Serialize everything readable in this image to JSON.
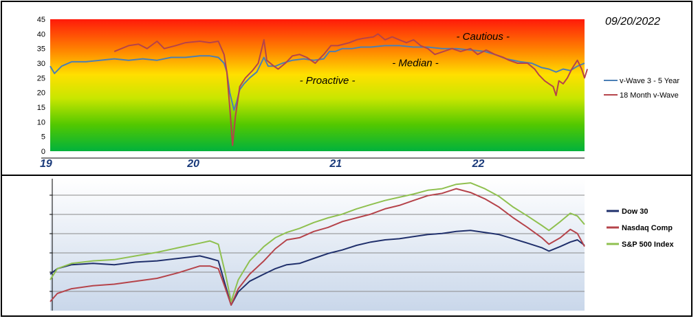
{
  "date_label": "09/20/2022",
  "chart_data": [
    {
      "type": "line",
      "title": "",
      "ylim": [
        0,
        45
      ],
      "yticks": [
        0,
        5,
        10,
        15,
        20,
        25,
        30,
        35,
        40,
        45
      ],
      "xlim": [
        2019.0,
        2022.75
      ],
      "xticks": [
        {
          "value": 2019.0,
          "label": "19"
        },
        {
          "value": 2020.0,
          "label": "20"
        },
        {
          "value": 2021.0,
          "label": "21"
        },
        {
          "value": 2022.0,
          "label": "22"
        }
      ],
      "background": "vertical gradient red (top) → orange → yellow → green (bottom)",
      "zone_labels": [
        {
          "text": "- Cautious -",
          "x": 2021.85,
          "y": 38
        },
        {
          "text": "- Median -",
          "x": 2021.4,
          "y": 29
        },
        {
          "text": "- Proactive -",
          "x": 2020.75,
          "y": 23
        }
      ],
      "legend_position": "right",
      "series": [
        {
          "name": "v-Wave 3 - 5 Year",
          "color": "#4a7fb5",
          "points": [
            [
              2019.0,
              29
            ],
            [
              2019.03,
              26.5
            ],
            [
              2019.08,
              29
            ],
            [
              2019.15,
              30.5
            ],
            [
              2019.25,
              30.5
            ],
            [
              2019.35,
              31
            ],
            [
              2019.45,
              31.5
            ],
            [
              2019.55,
              31
            ],
            [
              2019.65,
              31.5
            ],
            [
              2019.75,
              31
            ],
            [
              2019.85,
              32
            ],
            [
              2019.95,
              32
            ],
            [
              2020.05,
              32.5
            ],
            [
              2020.12,
              32.5
            ],
            [
              2020.18,
              32
            ],
            [
              2020.22,
              30
            ],
            [
              2020.24,
              27
            ],
            [
              2020.26,
              20
            ],
            [
              2020.29,
              14
            ],
            [
              2020.31,
              17
            ],
            [
              2020.33,
              21
            ],
            [
              2020.36,
              23
            ],
            [
              2020.4,
              25
            ],
            [
              2020.45,
              27
            ],
            [
              2020.5,
              32
            ],
            [
              2020.53,
              29
            ],
            [
              2020.58,
              29
            ],
            [
              2020.63,
              30
            ],
            [
              2020.7,
              31
            ],
            [
              2020.78,
              31.5
            ],
            [
              2020.85,
              31
            ],
            [
              2020.92,
              31.5
            ],
            [
              2020.96,
              34
            ],
            [
              2021.0,
              34
            ],
            [
              2021.05,
              35
            ],
            [
              2021.12,
              35
            ],
            [
              2021.18,
              35.5
            ],
            [
              2021.25,
              35.5
            ],
            [
              2021.35,
              36
            ],
            [
              2021.45,
              36
            ],
            [
              2021.55,
              35.5
            ],
            [
              2021.65,
              35.5
            ],
            [
              2021.75,
              35
            ],
            [
              2021.85,
              35
            ],
            [
              2021.95,
              34.5
            ],
            [
              2022.05,
              34
            ],
            [
              2022.12,
              33
            ],
            [
              2022.2,
              31.5
            ],
            [
              2022.3,
              30.5
            ],
            [
              2022.38,
              30
            ],
            [
              2022.45,
              28.5
            ],
            [
              2022.5,
              28
            ],
            [
              2022.55,
              27
            ],
            [
              2022.6,
              28
            ],
            [
              2022.65,
              27.5
            ],
            [
              2022.7,
              29
            ],
            [
              2022.75,
              30
            ]
          ]
        },
        {
          "name": "18 Month v-Wave",
          "color": "#b5434a",
          "points": [
            [
              2019.45,
              34
            ],
            [
              2019.5,
              35
            ],
            [
              2019.55,
              36
            ],
            [
              2019.62,
              36.5
            ],
            [
              2019.68,
              35
            ],
            [
              2019.75,
              37.5
            ],
            [
              2019.8,
              35
            ],
            [
              2019.88,
              36
            ],
            [
              2019.95,
              37
            ],
            [
              2020.05,
              37.5
            ],
            [
              2020.12,
              37
            ],
            [
              2020.18,
              37.5
            ],
            [
              2020.22,
              33
            ],
            [
              2020.24,
              27
            ],
            [
              2020.26,
              15
            ],
            [
              2020.28,
              2
            ],
            [
              2020.3,
              12
            ],
            [
              2020.33,
              22
            ],
            [
              2020.37,
              25
            ],
            [
              2020.42,
              27.5
            ],
            [
              2020.46,
              30
            ],
            [
              2020.5,
              38
            ],
            [
              2020.52,
              31
            ],
            [
              2020.57,
              29
            ],
            [
              2020.6,
              28
            ],
            [
              2020.65,
              30
            ],
            [
              2020.7,
              32.5
            ],
            [
              2020.75,
              33
            ],
            [
              2020.8,
              32
            ],
            [
              2020.86,
              30
            ],
            [
              2020.92,
              33
            ],
            [
              2020.97,
              36
            ],
            [
              2021.02,
              36
            ],
            [
              2021.1,
              37
            ],
            [
              2021.15,
              38
            ],
            [
              2021.2,
              38.5
            ],
            [
              2021.27,
              39
            ],
            [
              2021.3,
              40
            ],
            [
              2021.35,
              38
            ],
            [
              2021.4,
              39
            ],
            [
              2021.45,
              38
            ],
            [
              2021.5,
              37
            ],
            [
              2021.55,
              38
            ],
            [
              2021.6,
              36
            ],
            [
              2021.65,
              35
            ],
            [
              2021.7,
              33
            ],
            [
              2021.76,
              34
            ],
            [
              2021.82,
              35
            ],
            [
              2021.88,
              34
            ],
            [
              2021.95,
              35
            ],
            [
              2022.0,
              33
            ],
            [
              2022.06,
              34.5
            ],
            [
              2022.12,
              33
            ],
            [
              2022.18,
              32
            ],
            [
              2022.22,
              31
            ],
            [
              2022.28,
              30
            ],
            [
              2022.35,
              30
            ],
            [
              2022.4,
              28
            ],
            [
              2022.43,
              26
            ],
            [
              2022.47,
              24
            ],
            [
              2022.5,
              23
            ],
            [
              2022.53,
              22
            ],
            [
              2022.55,
              19
            ],
            [
              2022.57,
              24
            ],
            [
              2022.6,
              23
            ],
            [
              2022.63,
              25
            ],
            [
              2022.66,
              28
            ],
            [
              2022.7,
              31
            ],
            [
              2022.73,
              28
            ],
            [
              2022.75,
              25
            ],
            [
              2022.77,
              28
            ]
          ]
        }
      ]
    },
    {
      "type": "line",
      "title": "",
      "y_scale": "log",
      "xlim": [
        2019.0,
        2022.75
      ],
      "legend_position": "right",
      "series": [
        {
          "name": "Dow 30",
          "color": "#1f2f6b",
          "points": [
            [
              2019.0,
              100
            ],
            [
              2019.05,
              104
            ],
            [
              2019.15,
              107
            ],
            [
              2019.3,
              108
            ],
            [
              2019.45,
              107
            ],
            [
              2019.6,
              109
            ],
            [
              2019.75,
              110
            ],
            [
              2019.9,
              112
            ],
            [
              2020.05,
              114
            ],
            [
              2020.12,
              112
            ],
            [
              2020.18,
              110
            ],
            [
              2020.23,
              92
            ],
            [
              2020.27,
              80
            ],
            [
              2020.32,
              88
            ],
            [
              2020.4,
              95
            ],
            [
              2020.5,
              100
            ],
            [
              2020.58,
              104
            ],
            [
              2020.66,
              107
            ],
            [
              2020.75,
              108
            ],
            [
              2020.85,
              112
            ],
            [
              2020.95,
              116
            ],
            [
              2021.05,
              119
            ],
            [
              2021.15,
              123
            ],
            [
              2021.25,
              126
            ],
            [
              2021.35,
              128
            ],
            [
              2021.45,
              129
            ],
            [
              2021.55,
              131
            ],
            [
              2021.65,
              133
            ],
            [
              2021.75,
              134
            ],
            [
              2021.85,
              136
            ],
            [
              2021.95,
              137
            ],
            [
              2022.05,
              135
            ],
            [
              2022.15,
              133
            ],
            [
              2022.25,
              129
            ],
            [
              2022.35,
              125
            ],
            [
              2022.45,
              121
            ],
            [
              2022.5,
              118
            ],
            [
              2022.58,
              122
            ],
            [
              2022.65,
              126
            ],
            [
              2022.7,
              128
            ],
            [
              2022.75,
              123
            ]
          ]
        },
        {
          "name": "Nasdaq Comp",
          "color": "#b5434a",
          "points": [
            [
              2019.0,
              82
            ],
            [
              2019.05,
              87
            ],
            [
              2019.15,
              90
            ],
            [
              2019.3,
              92
            ],
            [
              2019.45,
              93
            ],
            [
              2019.6,
              95
            ],
            [
              2019.75,
              97
            ],
            [
              2019.9,
              101
            ],
            [
              2020.05,
              106
            ],
            [
              2020.12,
              106
            ],
            [
              2020.18,
              104
            ],
            [
              2020.23,
              90
            ],
            [
              2020.27,
              80
            ],
            [
              2020.32,
              90
            ],
            [
              2020.4,
              100
            ],
            [
              2020.5,
              110
            ],
            [
              2020.58,
              120
            ],
            [
              2020.66,
              128
            ],
            [
              2020.75,
              130
            ],
            [
              2020.85,
              136
            ],
            [
              2020.95,
              140
            ],
            [
              2021.05,
              146
            ],
            [
              2021.15,
              150
            ],
            [
              2021.25,
              154
            ],
            [
              2021.35,
              160
            ],
            [
              2021.45,
              164
            ],
            [
              2021.55,
              170
            ],
            [
              2021.65,
              176
            ],
            [
              2021.75,
              179
            ],
            [
              2021.85,
              185
            ],
            [
              2021.95,
              180
            ],
            [
              2022.05,
              172
            ],
            [
              2022.15,
              162
            ],
            [
              2022.25,
              150
            ],
            [
              2022.35,
              140
            ],
            [
              2022.45,
              130
            ],
            [
              2022.5,
              124
            ],
            [
              2022.58,
              130
            ],
            [
              2022.65,
              138
            ],
            [
              2022.7,
              134
            ],
            [
              2022.75,
              122
            ]
          ]
        },
        {
          "name": "S&P 500 Index",
          "color": "#8fc04f",
          "points": [
            [
              2019.0,
              96
            ],
            [
              2019.05,
              104
            ],
            [
              2019.15,
              108
            ],
            [
              2019.3,
              110
            ],
            [
              2019.45,
              111
            ],
            [
              2019.6,
              114
            ],
            [
              2019.75,
              117
            ],
            [
              2019.9,
              121
            ],
            [
              2020.05,
              125
            ],
            [
              2020.12,
              127
            ],
            [
              2020.18,
              124
            ],
            [
              2020.23,
              100
            ],
            [
              2020.27,
              82
            ],
            [
              2020.32,
              96
            ],
            [
              2020.4,
              110
            ],
            [
              2020.5,
              122
            ],
            [
              2020.58,
              130
            ],
            [
              2020.66,
              135
            ],
            [
              2020.75,
              139
            ],
            [
              2020.85,
              145
            ],
            [
              2020.95,
              150
            ],
            [
              2021.05,
              154
            ],
            [
              2021.15,
              160
            ],
            [
              2021.25,
              165
            ],
            [
              2021.35,
              170
            ],
            [
              2021.45,
              174
            ],
            [
              2021.55,
              178
            ],
            [
              2021.65,
              183
            ],
            [
              2021.75,
              185
            ],
            [
              2021.85,
              191
            ],
            [
              2021.95,
              193
            ],
            [
              2022.05,
              185
            ],
            [
              2022.15,
              175
            ],
            [
              2022.25,
              162
            ],
            [
              2022.35,
              152
            ],
            [
              2022.45,
              142
            ],
            [
              2022.5,
              137
            ],
            [
              2022.58,
              146
            ],
            [
              2022.65,
              155
            ],
            [
              2022.7,
              152
            ],
            [
              2022.75,
              143
            ]
          ]
        }
      ]
    }
  ]
}
